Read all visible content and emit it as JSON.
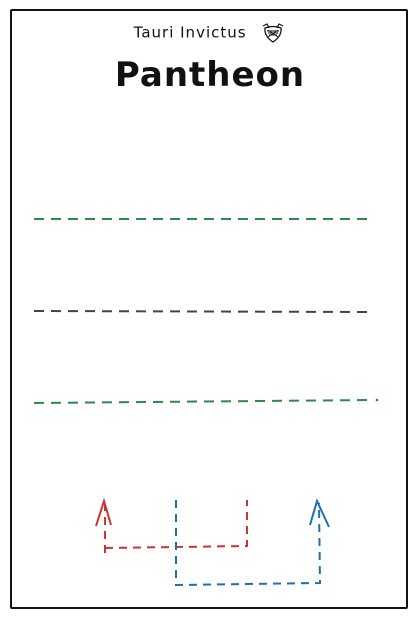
{
  "header": {
    "subtitle": "Tauri Invictus",
    "title": "Pantheon",
    "logo_icon": "masked-face-icon"
  },
  "colors": {
    "green": "#2e8b45",
    "gray": "#444444",
    "red": "#cc3333",
    "blue": "#1f6fb3",
    "border": "#111111"
  }
}
